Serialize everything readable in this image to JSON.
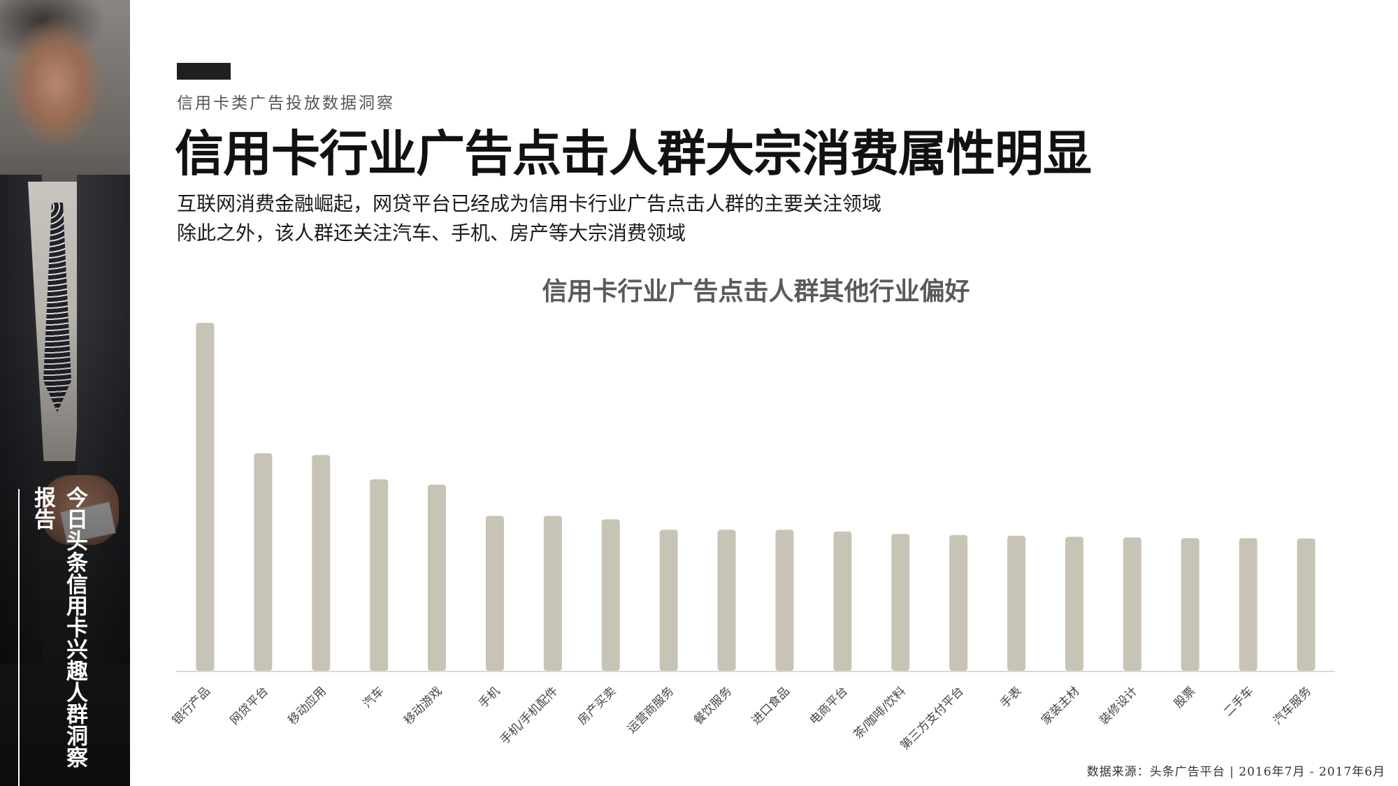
{
  "sidebar": {
    "title": "今日头条信用卡兴趣人群洞察报告"
  },
  "header": {
    "kicker": "信用卡类广告投放数据洞察",
    "title": "信用卡行业广告点击人群大宗消费属性明显",
    "desc_line1": "互联网消费金融崛起，网贷平台已经成为信用卡行业广告点击人群的主要关注领域",
    "desc_line2": "除此之外，该人群还关注汽车、手机、房产等大宗消费领域"
  },
  "chart_data": {
    "type": "bar",
    "title": "信用卡行业广告点击人群其他行业偏好",
    "categories": [
      "银行产品",
      "网贷平台",
      "移动应用",
      "汽车",
      "移动游戏",
      "手机",
      "手机/手机配件",
      "房产买卖",
      "运营商服务",
      "餐饮服务",
      "进口食品",
      "电商平台",
      "茶/咖啡/饮料",
      "第三方支付平台",
      "手表",
      "家装主材",
      "装修设计",
      "股票",
      "二手车",
      "汽车服务"
    ],
    "values": [
      100,
      62.5,
      62,
      55,
      53.5,
      44.5,
      44.5,
      43.5,
      40.5,
      40.5,
      40.5,
      40,
      39.3,
      39,
      38.8,
      38.5,
      38.3,
      38.1,
      38.1,
      38
    ],
    "ylim": [
      0,
      100
    ],
    "grid": false,
    "legend": "none",
    "bar_color": "#c8c4b5",
    "axis_color": "#d9d9d9"
  },
  "footer": {
    "source": "数据来源：头条广告平台 | 2016年7月 - 2017年6月"
  }
}
